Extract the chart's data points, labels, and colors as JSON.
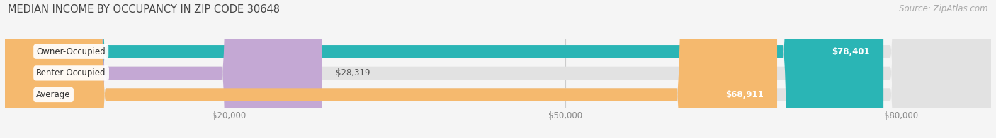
{
  "title": "MEDIAN INCOME BY OCCUPANCY IN ZIP CODE 30648",
  "source": "Source: ZipAtlas.com",
  "categories": [
    "Owner-Occupied",
    "Renter-Occupied",
    "Average"
  ],
  "values": [
    78401,
    28319,
    68911
  ],
  "bar_colors": [
    "#2ab5b5",
    "#c4a8d4",
    "#f5b96e"
  ],
  "label_colors": [
    "#ffffff",
    "#555555",
    "#ffffff"
  ],
  "value_labels": [
    "$78,401",
    "$28,319",
    "$68,911"
  ],
  "x_ticks": [
    20000,
    50000,
    80000
  ],
  "x_tick_labels": [
    "$20,000",
    "$50,000",
    "$80,000"
  ],
  "xlim_max": 88000,
  "background_color": "#f5f5f5",
  "bar_background_color": "#e2e2e2",
  "title_fontsize": 10.5,
  "source_fontsize": 8.5,
  "bar_label_fontsize": 8.5,
  "value_fontsize": 8.5
}
